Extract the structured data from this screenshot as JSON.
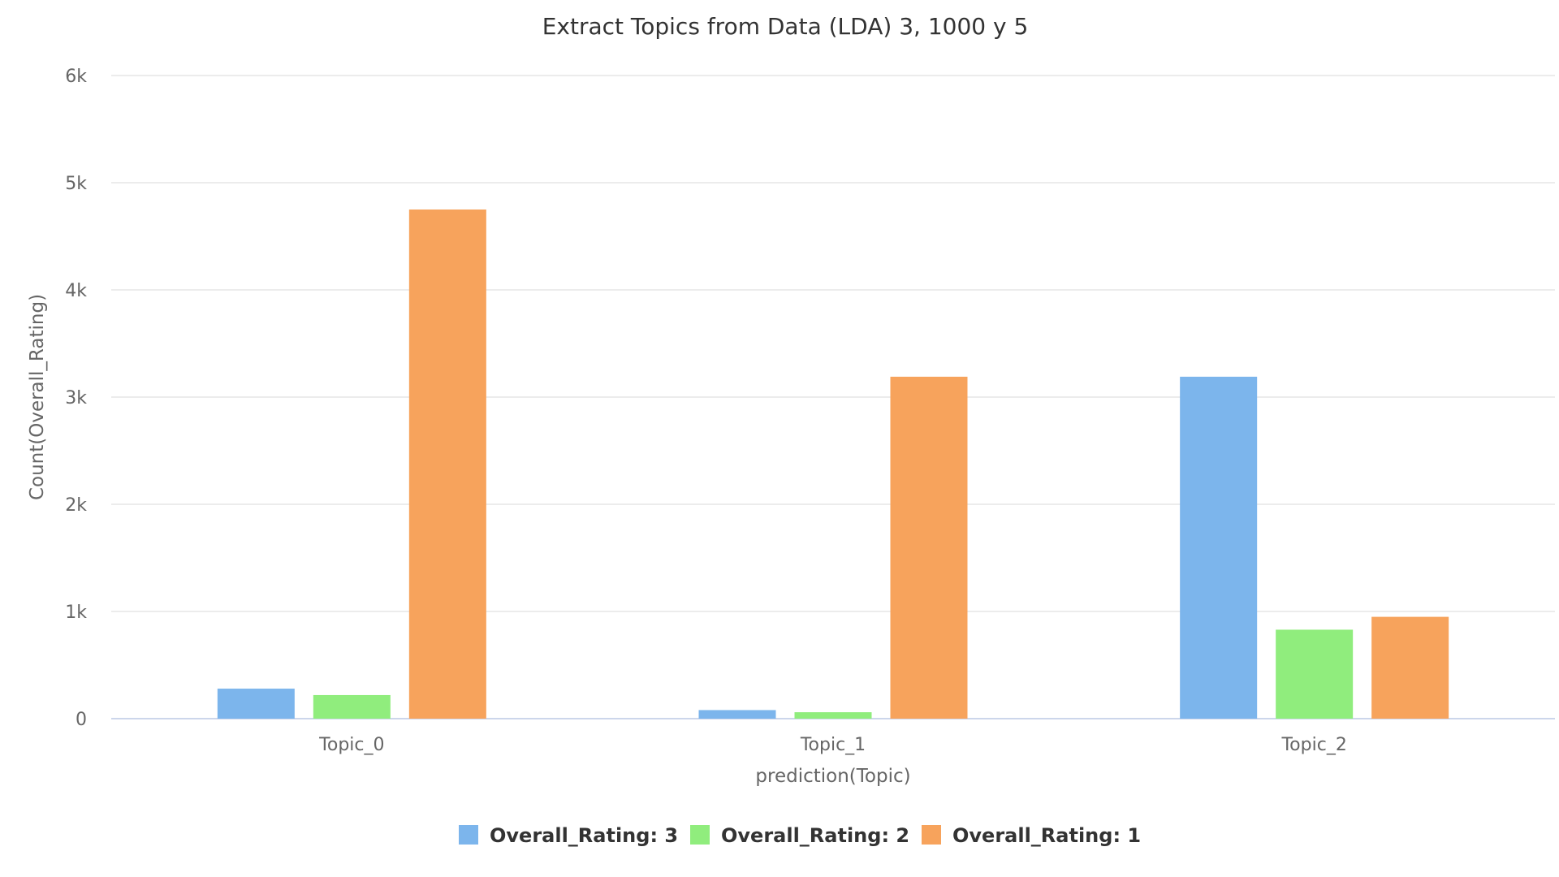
{
  "chart_data": {
    "type": "bar",
    "title": "Extract Topics from Data (LDA) 3, 1000 y 5",
    "xlabel": "prediction(Topic)",
    "ylabel": "Count(Overall_Rating)",
    "categories": [
      "Topic_0",
      "Topic_1",
      "Topic_2"
    ],
    "series": [
      {
        "name": "Overall_Rating: 3",
        "color": "#7cb5ec",
        "values": [
          280,
          80,
          3190
        ]
      },
      {
        "name": "Overall_Rating: 2",
        "color": "#90ed7d",
        "values": [
          220,
          60,
          830
        ]
      },
      {
        "name": "Overall_Rating: 1",
        "color": "#f7a35c",
        "values": [
          4750,
          3190,
          950
        ]
      }
    ],
    "ylim": [
      0,
      6000
    ],
    "yticks": [
      {
        "value": 0,
        "label": "0"
      },
      {
        "value": 1000,
        "label": "1k"
      },
      {
        "value": 2000,
        "label": "2k"
      },
      {
        "value": 3000,
        "label": "3k"
      },
      {
        "value": 4000,
        "label": "4k"
      },
      {
        "value": 5000,
        "label": "5k"
      },
      {
        "value": 6000,
        "label": "6k"
      }
    ],
    "grid": true,
    "legend_position": "bottom-center"
  }
}
